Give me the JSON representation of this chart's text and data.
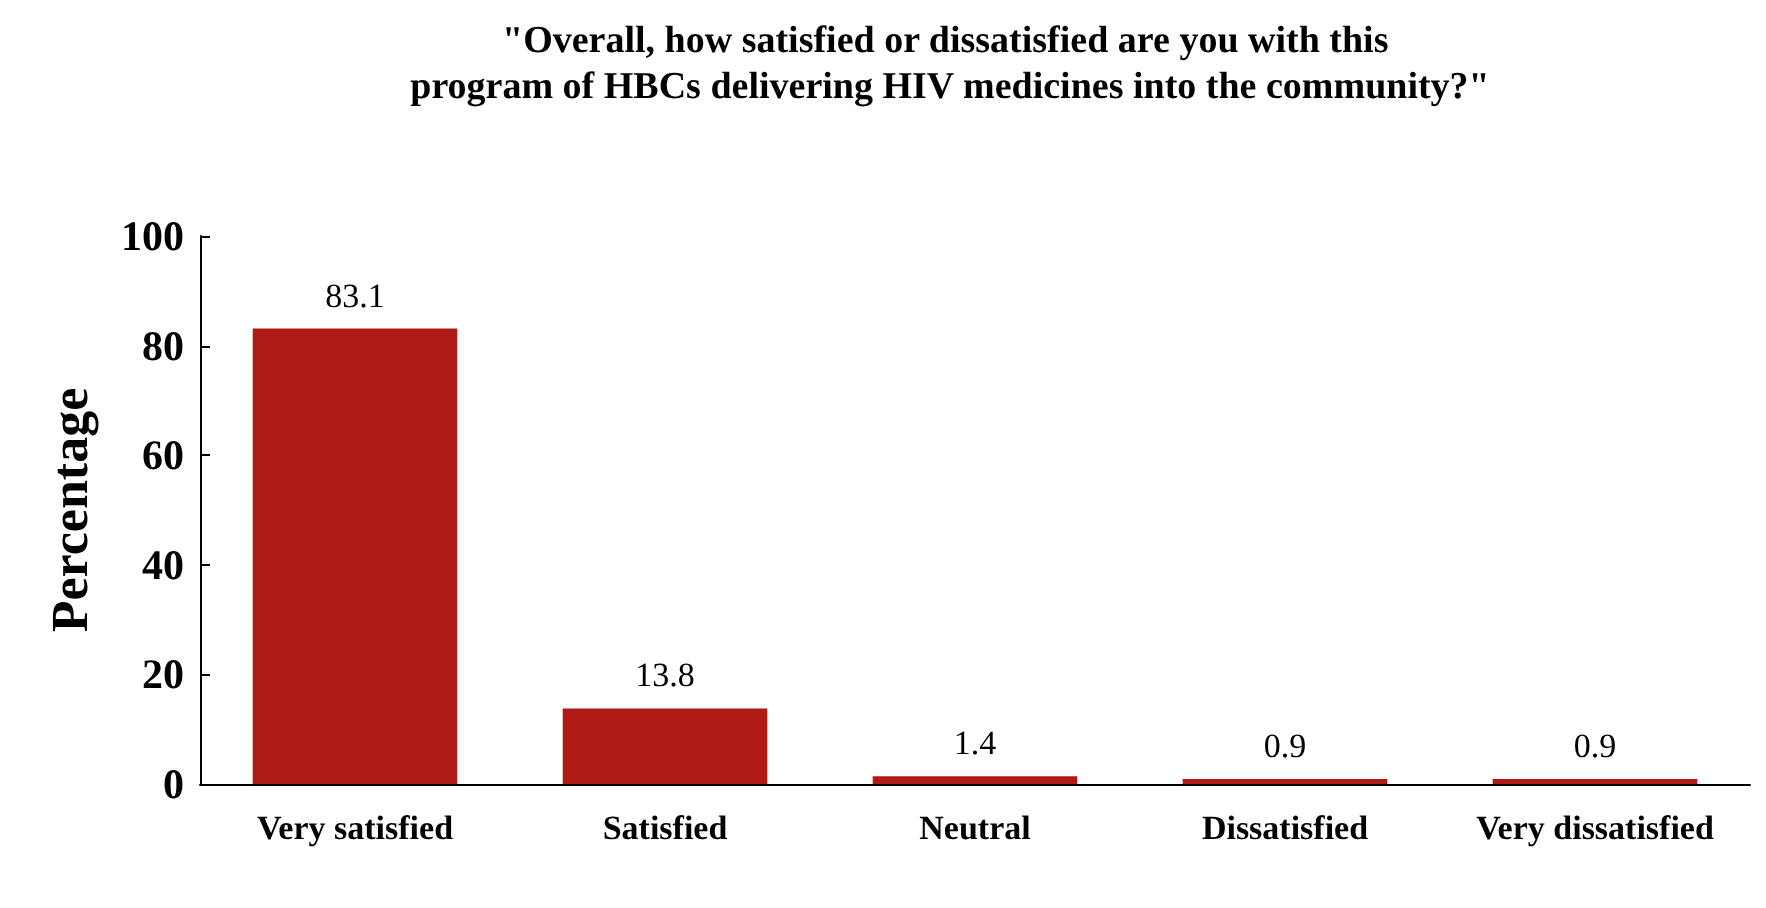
{
  "chart_data": {
    "type": "bar",
    "title": "\"Overall, how satisfied or dissatisfied are you with this program of HBCs delivering HIV medicines into the community?\"",
    "ylabel": "Percentage",
    "categories": [
      "Very satisfied",
      "Satisfied",
      "Neutral",
      "Dissatisfied",
      "Very dissatisfied"
    ],
    "values": [
      83.1,
      13.8,
      1.4,
      0.9,
      0.9
    ],
    "color": "#b01a16",
    "ylim": [
      0,
      100
    ],
    "yticks": [
      0,
      20,
      40,
      60,
      80,
      100
    ],
    "grid": false,
    "data_labels": true
  }
}
